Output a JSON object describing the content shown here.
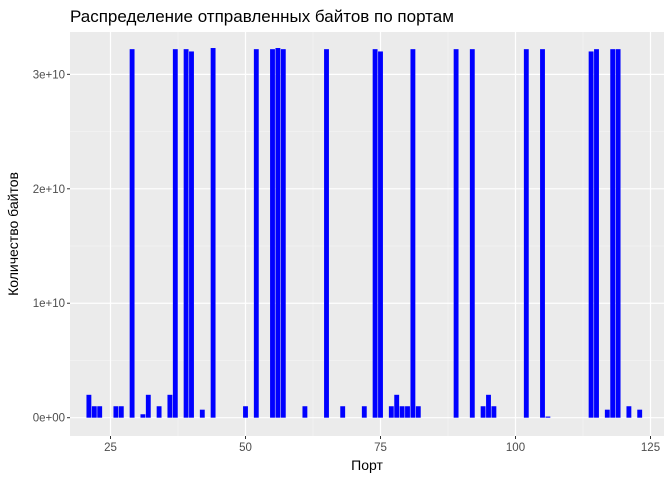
{
  "chart_data": {
    "type": "bar",
    "title": "Распределение отправленных байтов по портам",
    "xlabel": "Порт",
    "ylabel": "Количество байтов",
    "xlim": [
      17.5,
      127.5
    ],
    "ylim": [
      -1600000000.0,
      33700000000.0
    ],
    "x_ticks": [
      25,
      50,
      75,
      100,
      125
    ],
    "x_tick_labels": [
      "25",
      "50",
      "75",
      "100",
      "125"
    ],
    "y_ticks": [
      0,
      10000000000.0,
      20000000000.0,
      30000000000.0
    ],
    "y_tick_labels": [
      "0e+00",
      "1e+10",
      "2e+10",
      "3e+10"
    ],
    "grid": true,
    "bar_color": "#0000ff",
    "panel_color": "#ebebeb",
    "series": [
      {
        "x": [
          21,
          22,
          23,
          26,
          27,
          29,
          31,
          32,
          34,
          36,
          37,
          39,
          40,
          42,
          44,
          50,
          52,
          55,
          56,
          57,
          61,
          65,
          68,
          72,
          74,
          75,
          77,
          78,
          79,
          80,
          81,
          82,
          89,
          92,
          94,
          95,
          96,
          102,
          105,
          106,
          114,
          115,
          117,
          118,
          119,
          121,
          123
        ],
        "values": [
          2000000000.0,
          1000000000.0,
          1000000000.0,
          1000000000.0,
          1000000000.0,
          32200000000.0,
          300000000.0,
          2000000000.0,
          1000000000.0,
          2000000000.0,
          32200000000.0,
          32200000000.0,
          32000000000.0,
          700000000.0,
          32300000000.0,
          1000000000.0,
          32200000000.0,
          32200000000.0,
          32300000000.0,
          32200000000.0,
          1000000000.0,
          32200000000.0,
          1000000000.0,
          1000000000.0,
          32200000000.0,
          32000000000.0,
          1000000000.0,
          2000000000.0,
          1000000000.0,
          1000000000.0,
          32200000000.0,
          1000000000.0,
          32200000000.0,
          32200000000.0,
          1000000000.0,
          2000000000.0,
          1000000000.0,
          32200000000.0,
          32200000000.0,
          100000000.0,
          32000000000.0,
          32200000000.0,
          700000000.0,
          32200000000.0,
          32200000000.0,
          1000000000.0,
          700000000.0
        ]
      }
    ]
  }
}
